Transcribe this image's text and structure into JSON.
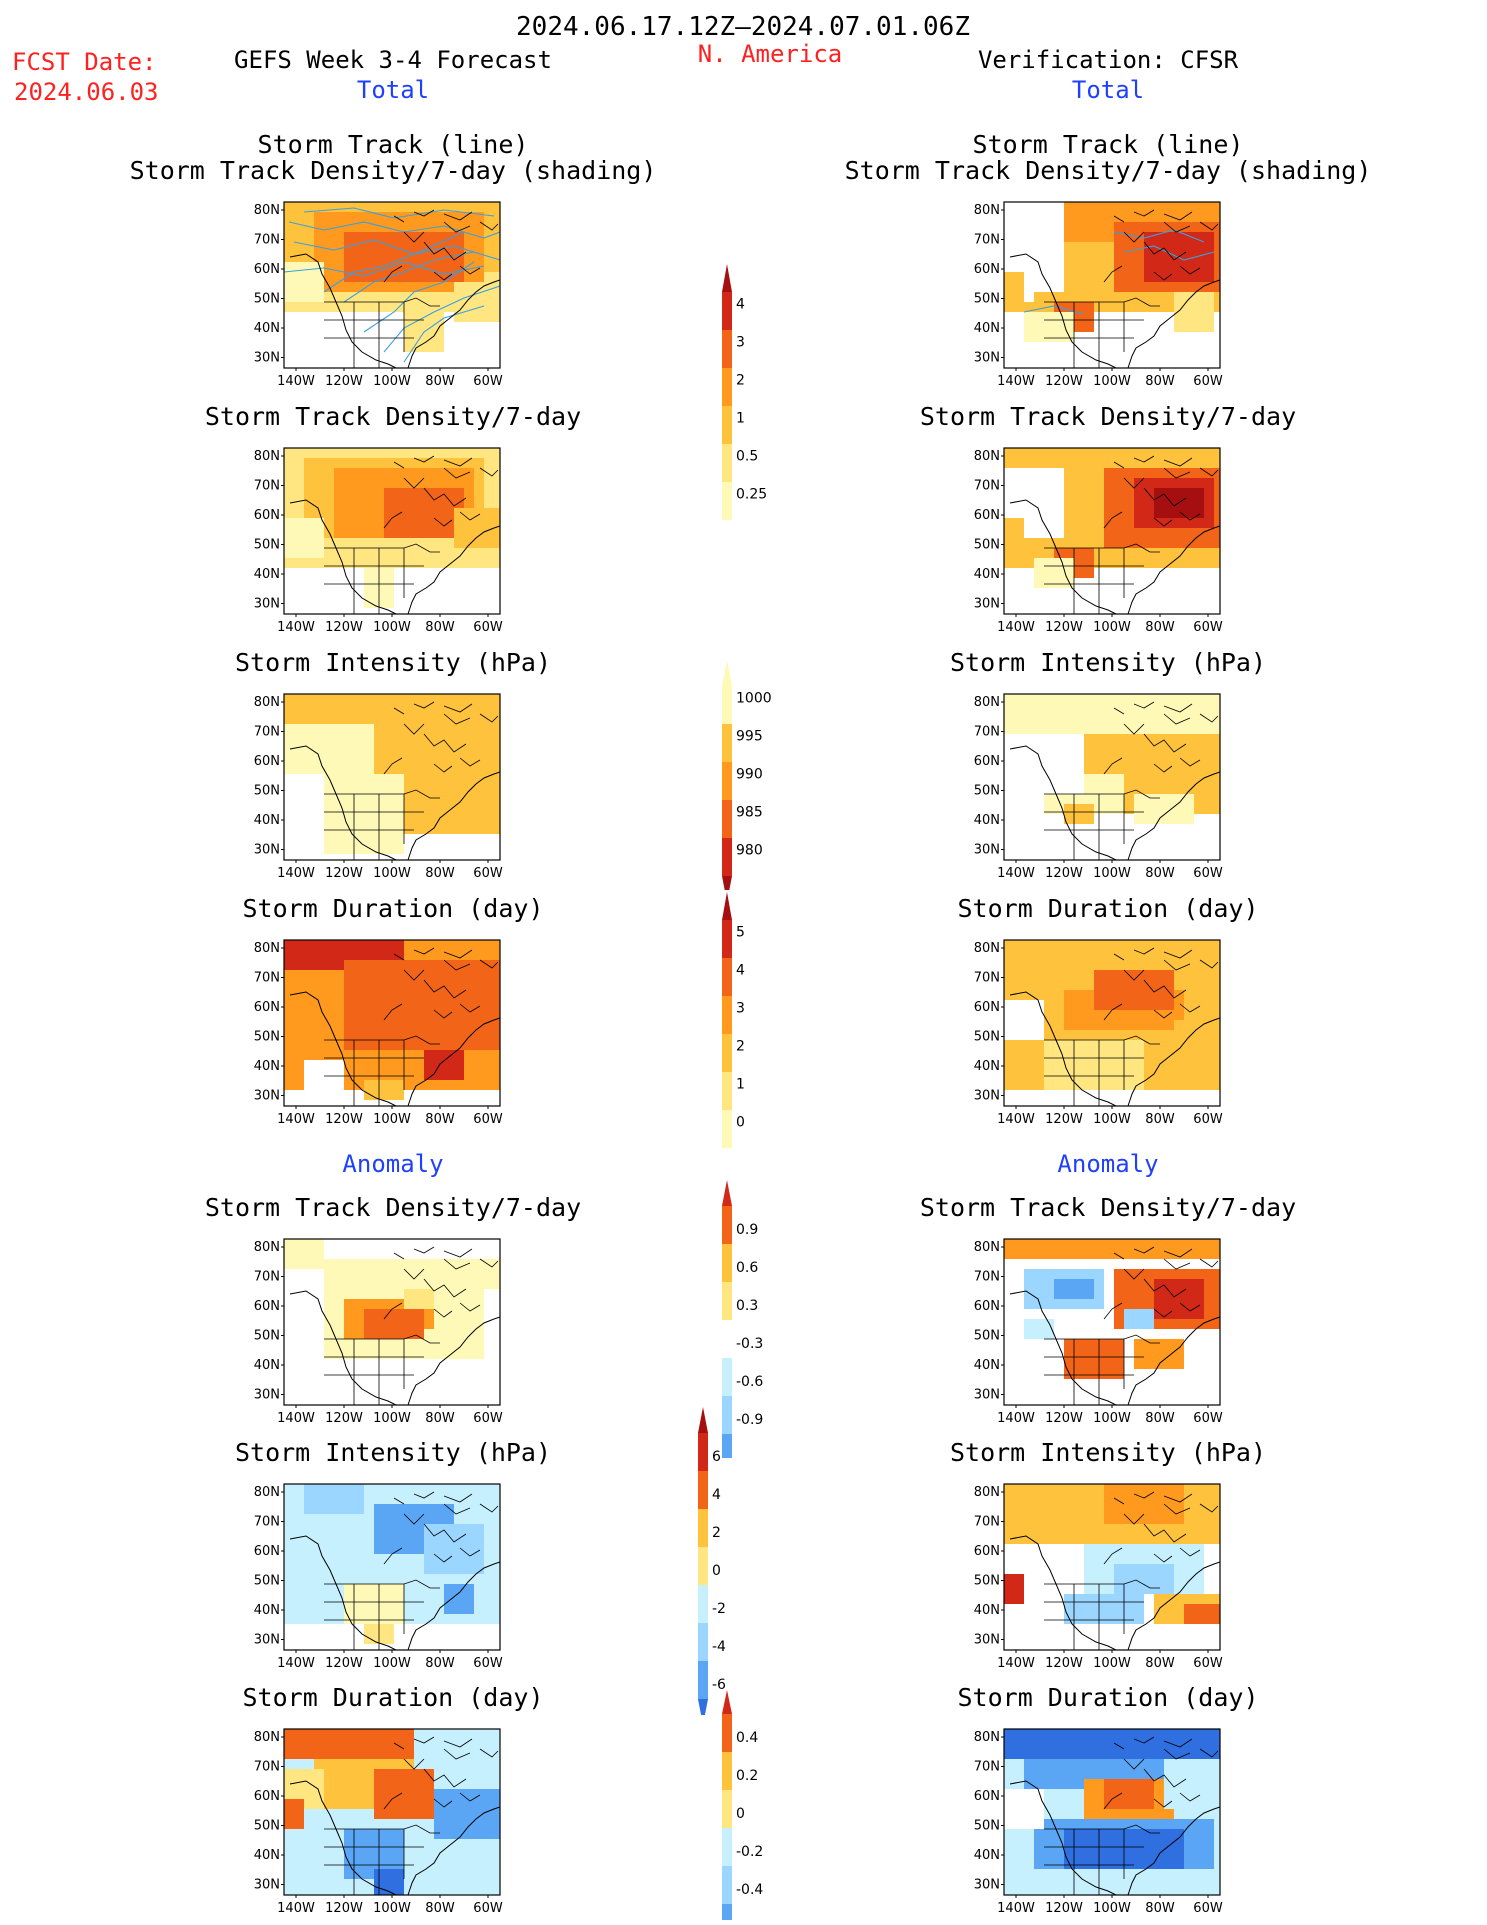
{
  "header": {
    "period": "2024.06.17.12Z–2024.07.01.06Z",
    "fcst_label": "FCST Date:",
    "fcst_date": "2024.06.03",
    "forecast_title": "GEFS Week 3-4 Forecast",
    "region": "N. America",
    "verification_title": "Verification: CFSR"
  },
  "sections": {
    "total": "Total",
    "anomaly": "Anomaly"
  },
  "panel_titles": {
    "track_line": "Storm Track (line)",
    "track_shading": "Storm Track Density/7-day (shading)",
    "density": "Storm Track Density/7-day",
    "intensity": "Storm Intensity (hPa)",
    "duration": "Storm Duration (day)"
  },
  "axes": {
    "lat_labels": [
      "80N",
      "70N",
      "60N",
      "50N",
      "40N",
      "30N"
    ],
    "lon_labels": [
      "140W",
      "120W",
      "100W",
      "80W",
      "60W"
    ]
  },
  "colorbars": [
    {
      "name": "density-total",
      "labels": [
        "4",
        "3",
        "2",
        "1",
        "0.5",
        "0.25"
      ]
    },
    {
      "name": "intensity-total",
      "labels": [
        "1000",
        "995",
        "990",
        "985",
        "980"
      ]
    },
    {
      "name": "duration-total",
      "labels": [
        "5",
        "4",
        "3",
        "2",
        "1",
        "0"
      ]
    },
    {
      "name": "density-anomaly",
      "labels": [
        "0.9",
        "0.6",
        "0.3",
        "-0.3",
        "-0.6",
        "-0.9"
      ]
    },
    {
      "name": "intensity-anomaly",
      "labels": [
        "6",
        "4",
        "2",
        "0",
        "-2",
        "-4",
        "-6"
      ]
    },
    {
      "name": "duration-anomaly",
      "labels": [
        "0.4",
        "0.2",
        "0",
        "-0.2",
        "-0.4"
      ]
    }
  ],
  "colors": {
    "warm": [
      "#fff9b8",
      "#ffe680",
      "#ffc23c",
      "#ff9a1e",
      "#f26418",
      "#d22818",
      "#a50f0f"
    ],
    "cool": [
      "#c7f0ff",
      "#9ad6ff",
      "#5aa6f5",
      "#2f6fe0"
    ],
    "track_line": "#3aa0e0"
  }
}
